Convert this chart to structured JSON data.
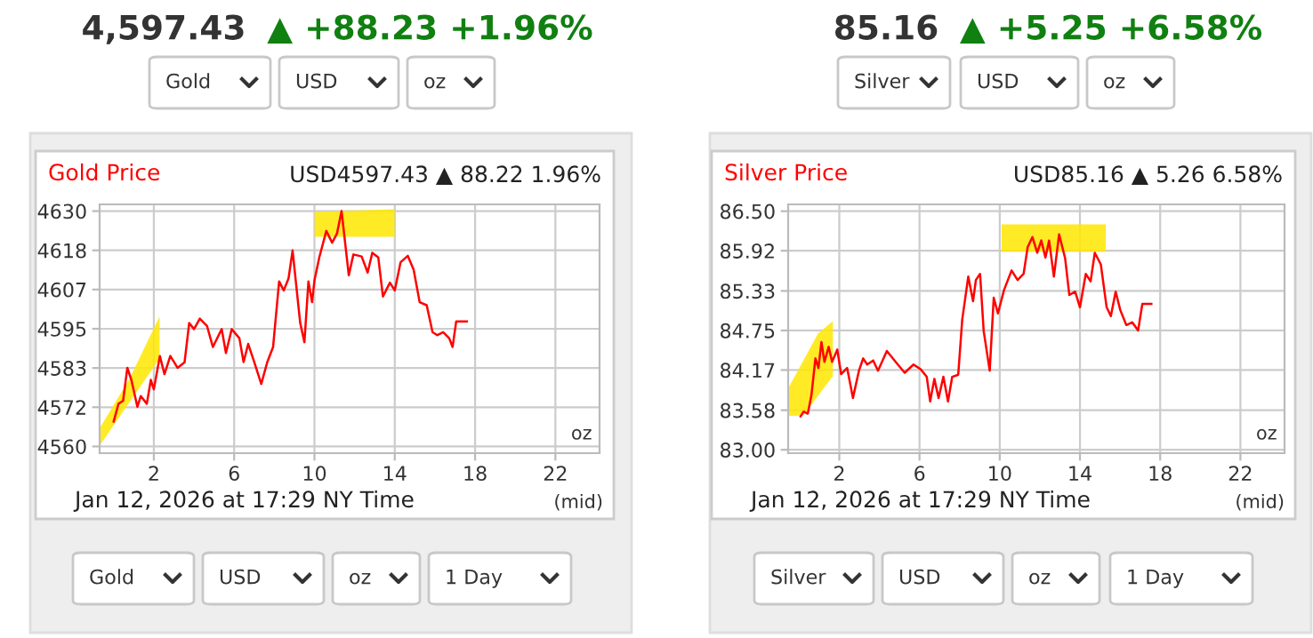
{
  "chart_data": [
    {
      "type": "line",
      "title": "Gold Price",
      "subtitle": "USD4597.43 ▲ 88.22 1.96%",
      "annotations": [
        "4,597.43",
        "▲ +88.23 +1.96%",
        "Gold",
        "USD",
        "oz",
        "Jan 12, 2026 at 17:29 NY Time",
        "(mid)",
        "oz",
        "Gold",
        "USD",
        "oz",
        "1 Day"
      ],
      "series": [
        {
          "color": "#ff0000",
          "x": [
            0,
            0.24,
            0.47,
            0.68,
            0.88,
            1.18,
            1.35,
            1.65,
            1.85,
            2.0,
            2.3,
            2.53,
            2.82,
            3.18,
            3.53,
            3.76,
            4.0,
            4.29,
            4.65,
            4.94,
            5.38,
            5.59,
            5.88,
            6.26,
            6.47,
            6.7,
            7.0,
            7.35,
            7.65,
            7.94,
            8.24,
            8.47,
            8.71,
            8.91,
            9.29,
            9.5,
            9.7,
            9.88,
            10.0,
            10.24,
            10.59,
            10.88,
            11.12,
            11.35,
            11.71,
            11.94,
            12.35,
            12.65,
            12.88,
            13.18,
            13.41,
            13.76,
            14.0,
            14.29,
            14.65,
            14.94,
            15.24,
            15.59,
            15.88,
            16.12,
            16.41,
            16.71,
            16.88,
            17.06,
            17.59
          ],
          "values": [
            4567.4,
            4572.7,
            4573.6,
            4583.4,
            4579.8,
            4571.8,
            4575,
            4572.7,
            4579.8,
            4577,
            4586.9,
            4581.5,
            4586.9,
            4583.4,
            4585,
            4596.7,
            4594.9,
            4598,
            4595.8,
            4589.6,
            4594.9,
            4587.8,
            4594.9,
            4592.2,
            4585.1,
            4590.5,
            4585.1,
            4578.6,
            4585.1,
            4589.6,
            4609.1,
            4606.4,
            4610,
            4618.3,
            4596.7,
            4591,
            4609.1,
            4602.9,
            4609.4,
            4616.2,
            4624.1,
            4620.6,
            4623.3,
            4630,
            4610.9,
            4617.1,
            4616.5,
            4611.7,
            4617.6,
            4616.2,
            4604.6,
            4608.7,
            4606.4,
            4614.8,
            4616.7,
            4612.6,
            4602.9,
            4602,
            4594,
            4593.1,
            4594,
            4592.2,
            4589.6,
            4597.2,
            4597.2
          ]
        }
      ],
      "xlim": [
        -0.7,
        24.2
      ],
      "xticks": [
        2,
        6,
        10,
        14,
        18,
        22
      ],
      "ylim": [
        4558,
        4632
      ],
      "yticks": [
        4560,
        {
          "value": 4571.67,
          "label": "4572"
        },
        {
          "value": 4583.33,
          "label": "4583"
        },
        4595,
        {
          "value": 4606.67,
          "label": "4607"
        },
        {
          "value": 4618.33,
          "label": "4618"
        },
        4630
      ],
      "grid": true,
      "line_style": "solid"
    },
    {
      "type": "line",
      "title": "Silver Price",
      "subtitle": "USD85.16 ▲ 5.26 6.58%",
      "annotations": [
        "85.16",
        "▲ +5.25 +6.58%",
        "Silver",
        "USD",
        "oz",
        "Jan 12, 2026 at 17:29 NY Time",
        "(mid)",
        "oz",
        "Silver",
        "USD",
        "oz",
        "1 Day"
      ],
      "series": [
        {
          "color": "#ff0000",
          "x": [
            0.07,
            0.22,
            0.43,
            0.61,
            0.81,
            0.96,
            1.11,
            1.26,
            1.47,
            1.64,
            1.9,
            2.09,
            2.39,
            2.68,
            2.98,
            3.19,
            3.39,
            3.69,
            3.93,
            4.37,
            4.81,
            5.26,
            5.7,
            6.06,
            6.36,
            6.53,
            6.74,
            6.95,
            7.19,
            7.42,
            7.63,
            7.93,
            8.13,
            8.43,
            8.67,
            8.81,
            9.02,
            9.2,
            9.5,
            9.7,
            9.91,
            10.21,
            10.59,
            10.89,
            11.19,
            11.39,
            11.63,
            11.87,
            12.07,
            12.28,
            12.46,
            12.7,
            12.96,
            13.26,
            13.47,
            13.76,
            14.0,
            14.29,
            14.53,
            14.74,
            15.04,
            15.33,
            15.54,
            15.78,
            16.01,
            16.31,
            16.61,
            16.9,
            17.11,
            17.56
          ],
          "values": [
            83.49,
            83.56,
            83.53,
            83.8,
            84.34,
            84.2,
            84.58,
            84.29,
            84.51,
            84.29,
            84.47,
            84.11,
            84.2,
            83.76,
            84.16,
            84.34,
            84.25,
            84.31,
            84.16,
            84.45,
            84.29,
            84.13,
            84.25,
            84.18,
            84.07,
            83.71,
            84.04,
            83.76,
            84.07,
            83.71,
            84.07,
            84.1,
            84.91,
            85.54,
            85.18,
            85.49,
            85.58,
            84.74,
            84.16,
            85.23,
            85.0,
            85.34,
            85.63,
            85.49,
            85.58,
            85.97,
            86.12,
            85.89,
            86.07,
            85.82,
            86.07,
            85.54,
            86.16,
            85.81,
            85.27,
            85.32,
            85.09,
            85.58,
            85.47,
            85.89,
            85.72,
            85.09,
            84.96,
            85.32,
            85.05,
            84.83,
            84.87,
            84.75,
            85.14,
            85.14
          ]
        }
      ],
      "xlim": [
        -0.55,
        24.2
      ],
      "xticks": [
        2,
        6,
        10,
        14,
        18,
        22
      ],
      "ylim": [
        82.95,
        86.6
      ],
      "yticks": [
        {
          "value": 83.0,
          "label": "83.00"
        },
        {
          "value": 83.58,
          "label": "83.58"
        },
        {
          "value": 84.17,
          "label": "84.17"
        },
        {
          "value": 84.75,
          "label": "84.75"
        },
        {
          "value": 85.33,
          "label": "85.33"
        },
        {
          "value": 85.92,
          "label": "85.92"
        },
        {
          "value": 86.5,
          "label": "86.50"
        }
      ],
      "grid": true,
      "line_style": "solid"
    }
  ]
}
